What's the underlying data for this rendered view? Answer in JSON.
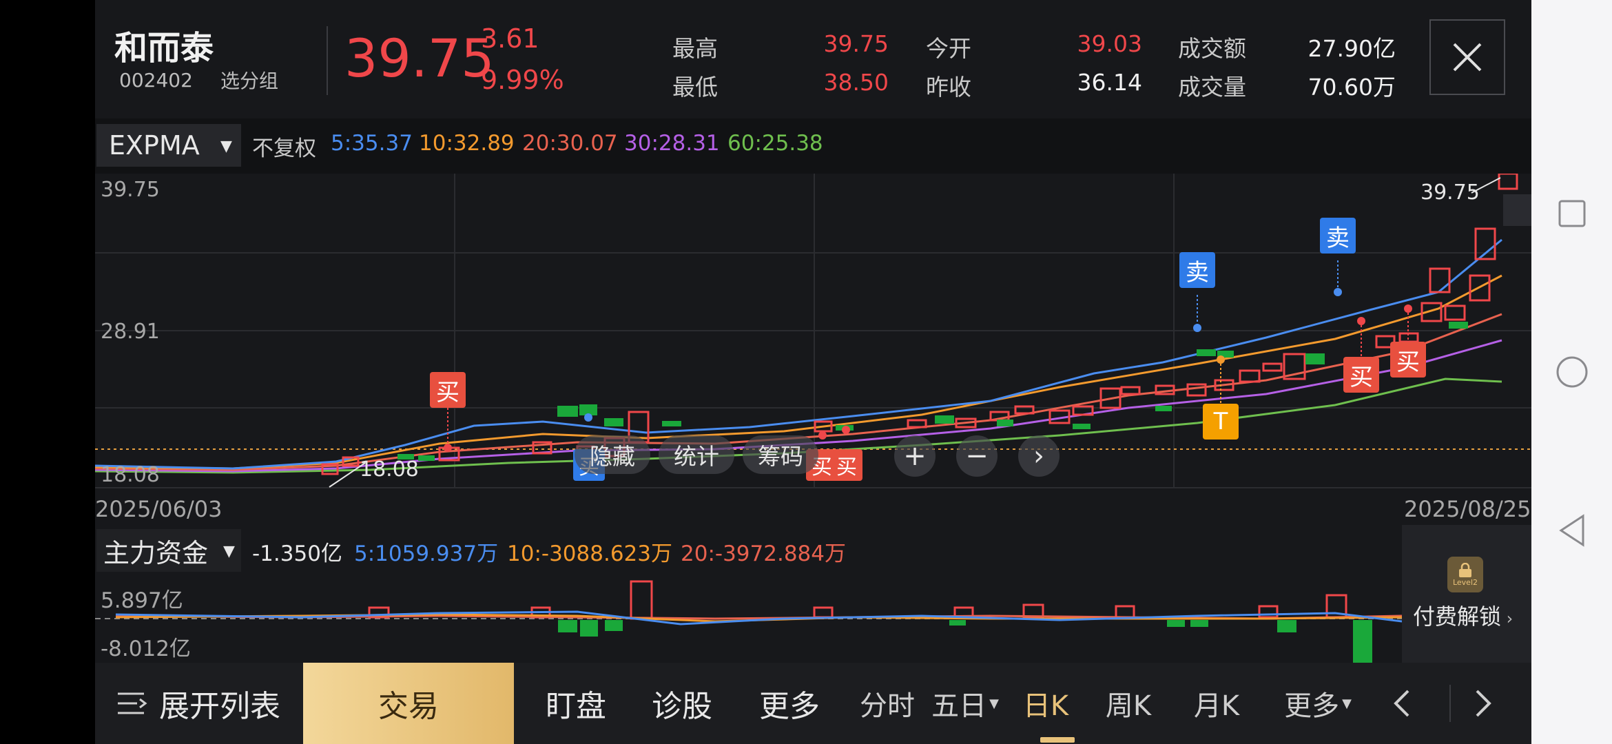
{
  "stock": {
    "name": "和而泰",
    "code": "002402",
    "group_label": "选分组",
    "price": "39.75",
    "change": "3.61",
    "change_pct": "9.99%"
  },
  "quote": {
    "high_label": "最高",
    "high": "39.75",
    "low_label": "最低",
    "low": "38.50",
    "open_label": "今开",
    "open": "39.03",
    "prev_close_label": "昨收",
    "prev_close": "36.14",
    "amount_label": "成交额",
    "amount": "27.90亿",
    "volume_label": "成交量",
    "volume": "70.60万"
  },
  "indicator": {
    "name": "EXPMA",
    "adjust": "不复权",
    "ma": [
      {
        "text": "5:35.37",
        "color": "#4a8df0"
      },
      {
        "text": "10:32.89",
        "color": "#f39a2e"
      },
      {
        "text": "20:30.07",
        "color": "#e8624f"
      },
      {
        "text": "30:28.31",
        "color": "#b560e6"
      },
      {
        "text": "60:25.38",
        "color": "#6fbf4e"
      }
    ]
  },
  "chart": {
    "y_top": "39.75",
    "y_mid": "28.91",
    "y_bottom": "18.08",
    "low_marker": "18.08",
    "high_marker": "39.75",
    "date_start": "2025/06/03",
    "date_end": "2025/08/25",
    "signals": {
      "buy": "买",
      "sell": "卖",
      "t": "T"
    }
  },
  "overlay": {
    "hide": "隐藏",
    "stats": "统计",
    "chips": "筹码",
    "plus": "+",
    "minus": "−",
    "next": "›"
  },
  "fund": {
    "name": "主力资金",
    "total": "-1.350亿",
    "f5": "5:1059.937万",
    "f10": "10:-3088.623万",
    "f20": "20:-3972.884万",
    "y_top": "5.897亿",
    "y_bottom": "-8.012亿",
    "lock_badge": "Level2",
    "lock_text": "付费解锁"
  },
  "nav": {
    "expand": "展开列表",
    "trade": "交易",
    "watch": "盯盘",
    "diagnose": "诊股",
    "more": "更多",
    "periods": [
      "分时",
      "五日",
      "日K",
      "周K",
      "月K",
      "更多"
    ]
  },
  "colors": {
    "up": "#f0474a",
    "down": "#1aa83a",
    "accent_gold": "#e8c27a"
  },
  "icons": {
    "close": "close-icon",
    "expand": "list-icon",
    "prev": "chevron-left-icon",
    "next": "chevron-right-icon",
    "lock": "lock-icon"
  }
}
